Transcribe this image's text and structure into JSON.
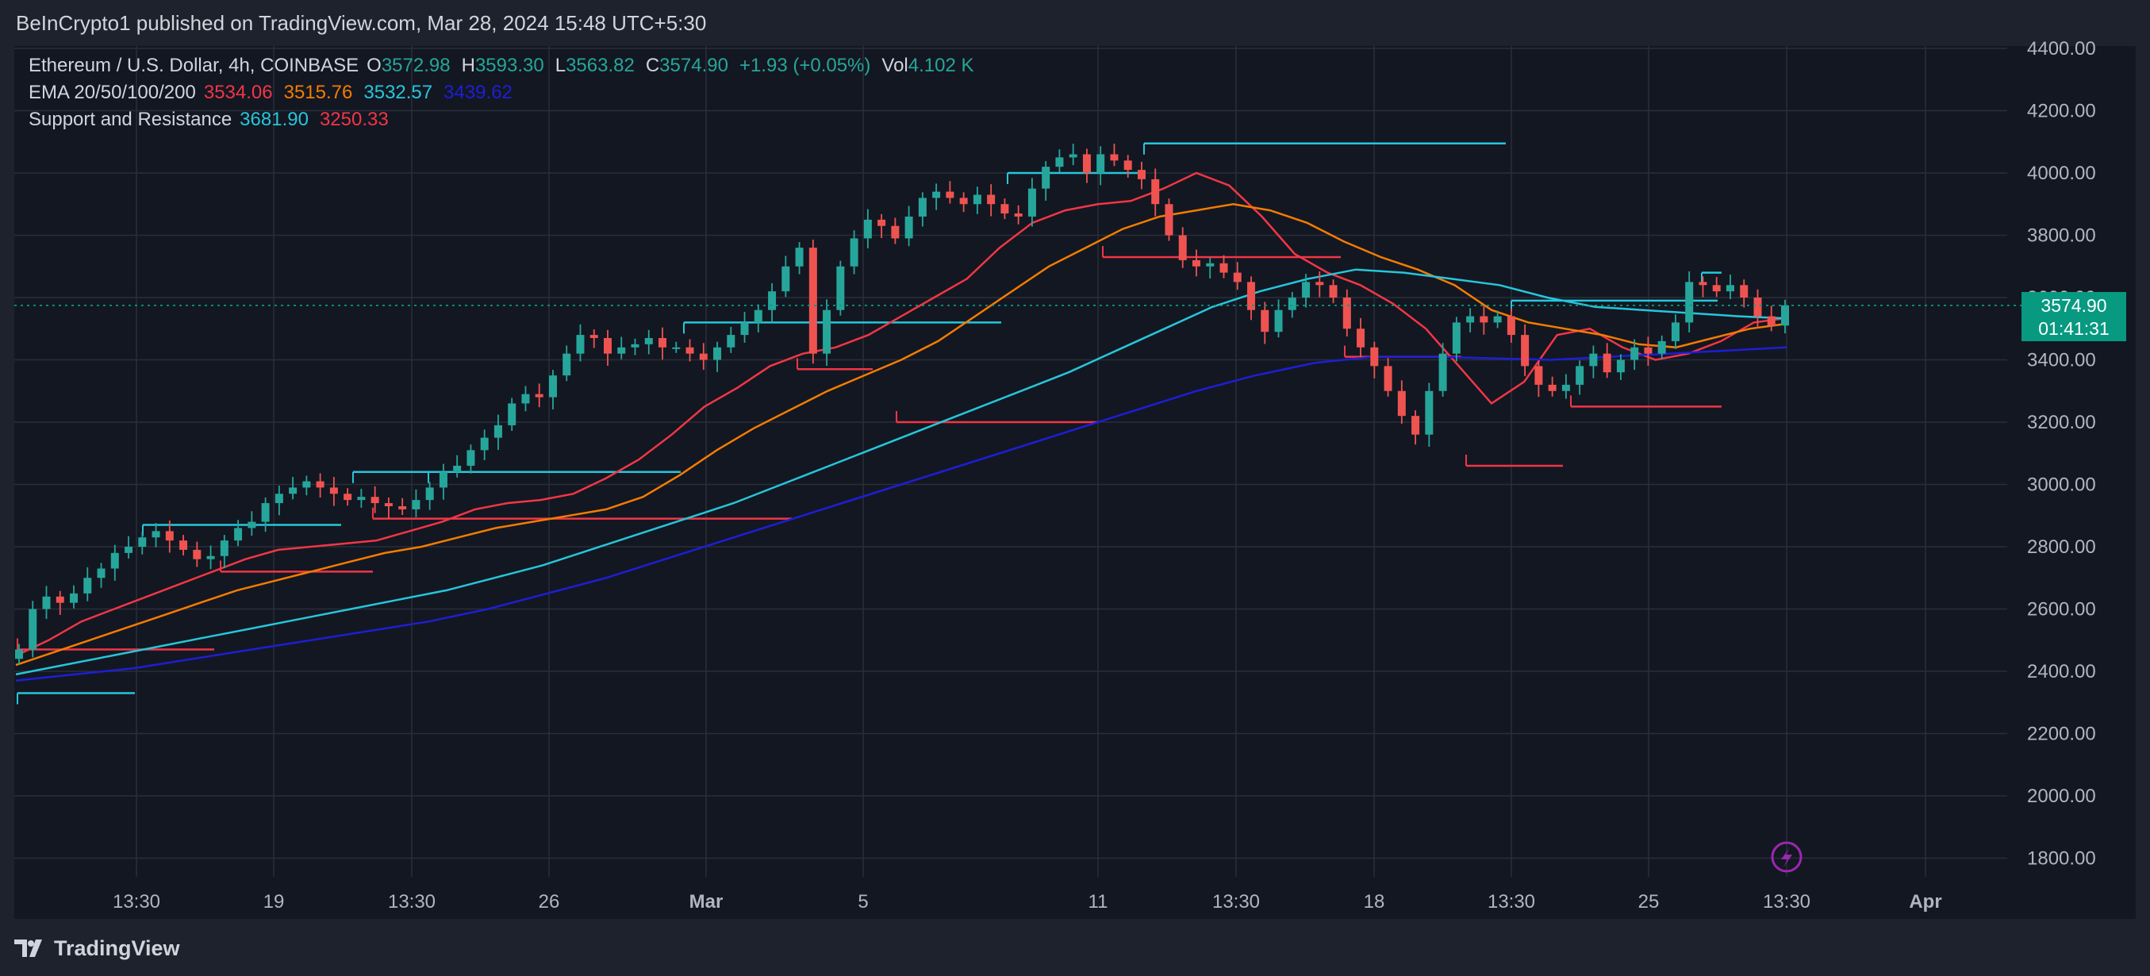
{
  "header": {
    "attribution": "BeInCrypto1 published on TradingView.com, Mar 28, 2024 15:48 UTC+5:30"
  },
  "legend": {
    "symbol": "Ethereum / U.S. Dollar, 4h, COINBASE",
    "open_label": "O",
    "open": "3572.98",
    "high_label": "H",
    "high": "3593.30",
    "low_label": "L",
    "low": "3563.82",
    "close_label": "C",
    "close": "3574.90",
    "change": "+1.93 (+0.05%)",
    "vol_label": "Vol",
    "vol": "4.102 K",
    "ema_label": "EMA 20/50/100/200",
    "ema20": "3534.06",
    "ema50": "3515.76",
    "ema100": "3532.57",
    "ema200": "3439.62",
    "sr_label": "Support and Resistance",
    "resistance": "3681.90",
    "support": "3250.33"
  },
  "price_badge": {
    "price": "3574.90",
    "countdown": "01:41:31"
  },
  "footer": {
    "brand": "TradingView"
  },
  "colors": {
    "up": "#26a69a",
    "down": "#ef5350",
    "ema20": "#f23645",
    "ema50": "#f57c00",
    "ema100": "#26c6da",
    "ema200": "#1e1ed6",
    "resistance": "#26c6da",
    "support": "#f23645",
    "badge": "#089981"
  },
  "chart_data": {
    "type": "line",
    "title": "Ethereum / U.S. Dollar, 4h, COINBASE",
    "x_ticks": [
      "13:30",
      "19",
      "13:30",
      "26",
      "Mar",
      "5",
      "11",
      "13:30",
      "18",
      "13:30",
      "25",
      "13:30",
      "Apr"
    ],
    "y_ticks": [
      "4400.00",
      "4200.00",
      "4000.00",
      "3800.00",
      "3600.00",
      "3400.00",
      "3200.00",
      "3000.00",
      "2800.00",
      "2600.00",
      "2400.00",
      "2200.00",
      "2000.00",
      "1800.00"
    ],
    "ylim": [
      1800,
      4400
    ],
    "grid": true,
    "current_price": 3574.9,
    "close_series": [
      2470,
      2600,
      2640,
      2620,
      2650,
      2700,
      2730,
      2780,
      2800,
      2830,
      2850,
      2820,
      2790,
      2760,
      2770,
      2820,
      2860,
      2880,
      2940,
      2970,
      2990,
      3010,
      2990,
      2970,
      2950,
      2960,
      2940,
      2930,
      2920,
      2950,
      2990,
      3040,
      3060,
      3110,
      3150,
      3190,
      3260,
      3290,
      3280,
      3350,
      3420,
      3480,
      3470,
      3420,
      3440,
      3450,
      3470,
      3440,
      3440,
      3420,
      3400,
      3440,
      3480,
      3520,
      3560,
      3620,
      3700,
      3760,
      3420,
      3560,
      3700,
      3790,
      3850,
      3830,
      3790,
      3860,
      3920,
      3940,
      3920,
      3900,
      3930,
      3900,
      3870,
      3860,
      3950,
      4020,
      4050,
      4060,
      4000,
      4060,
      4040,
      4010,
      3980,
      3900,
      3800,
      3720,
      3700,
      3710,
      3680,
      3650,
      3560,
      3490,
      3560,
      3600,
      3650,
      3640,
      3600,
      3500,
      3440,
      3380,
      3300,
      3220,
      3160,
      3300,
      3420,
      3520,
      3540,
      3520,
      3540,
      3480,
      3380,
      3320,
      3300,
      3320,
      3380,
      3420,
      3360,
      3400,
      3440,
      3420,
      3460,
      3520,
      3650,
      3640,
      3620,
      3640,
      3600,
      3540,
      3510,
      3575
    ],
    "series": [
      {
        "name": "EMA 20",
        "values": [
          2450,
          2500,
          2560,
          2600,
          2640,
          2680,
          2720,
          2760,
          2790,
          2800,
          2810,
          2820,
          2850,
          2880,
          2920,
          2940,
          2950,
          2970,
          3020,
          3080,
          3160,
          3250,
          3310,
          3380,
          3420,
          3440,
          3480,
          3540,
          3600,
          3660,
          3760,
          3840,
          3880,
          3900,
          3910,
          3950,
          4000,
          3960,
          3860,
          3740,
          3680,
          3640,
          3580,
          3500,
          3380,
          3260,
          3330,
          3480,
          3500,
          3440,
          3400,
          3420,
          3460,
          3520,
          3534
        ]
      },
      {
        "name": "EMA 50",
        "values": [
          2420,
          2460,
          2500,
          2540,
          2580,
          2620,
          2660,
          2690,
          2720,
          2750,
          2780,
          2800,
          2830,
          2860,
          2880,
          2900,
          2920,
          2960,
          3030,
          3110,
          3180,
          3240,
          3300,
          3350,
          3400,
          3460,
          3540,
          3620,
          3700,
          3760,
          3820,
          3860,
          3880,
          3900,
          3880,
          3840,
          3780,
          3730,
          3690,
          3640,
          3560,
          3520,
          3500,
          3480,
          3450,
          3440,
          3470,
          3500,
          3516
        ]
      },
      {
        "name": "EMA 100",
        "values": [
          2390,
          2420,
          2450,
          2480,
          2510,
          2540,
          2570,
          2600,
          2630,
          2660,
          2700,
          2740,
          2790,
          2840,
          2890,
          2940,
          3000,
          3060,
          3120,
          3180,
          3240,
          3300,
          3360,
          3430,
          3500,
          3570,
          3620,
          3660,
          3690,
          3680,
          3660,
          3640,
          3600,
          3570,
          3560,
          3550,
          3540,
          3533
        ]
      },
      {
        "name": "EMA 200",
        "values": [
          2370,
          2390,
          2410,
          2440,
          2470,
          2500,
          2530,
          2560,
          2600,
          2650,
          2700,
          2760,
          2820,
          2880,
          2940,
          3000,
          3060,
          3120,
          3180,
          3240,
          3300,
          3350,
          3390,
          3410,
          3410,
          3405,
          3400,
          3410,
          3420,
          3430,
          3440
        ]
      }
    ],
    "resistance_levels": [
      3681.9
    ],
    "support_levels": [
      3250.33
    ]
  }
}
